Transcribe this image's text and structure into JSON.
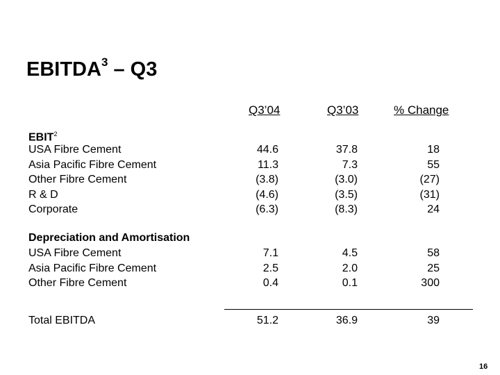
{
  "title": {
    "main": "EBITDA",
    "sup": "3",
    "rest": " – Q3"
  },
  "columns": [
    "Q3’04",
    "Q3’03",
    "% Change"
  ],
  "ebit": {
    "heading": "EBIT",
    "sup": "2",
    "rows": [
      {
        "label": "USA Fibre Cement",
        "v": [
          "44.6",
          "37.8",
          "18"
        ]
      },
      {
        "label": "Asia Pacific Fibre Cement",
        "v": [
          "11.3",
          "7.3",
          "55"
        ]
      },
      {
        "label": "Other Fibre Cement",
        "v": [
          "(3.8)",
          "(3.0)",
          "(27)"
        ]
      },
      {
        "label": "R & D",
        "v": [
          "(4.6)",
          "(3.5)",
          "(31)"
        ]
      },
      {
        "label": "Corporate",
        "v": [
          "(6.3)",
          "(8.3)",
          "24"
        ]
      }
    ]
  },
  "da": {
    "heading": "Depreciation and Amortisation",
    "rows": [
      {
        "label": "USA Fibre Cement",
        "v": [
          "7.1",
          "4.5",
          "58"
        ]
      },
      {
        "label": "Asia Pacific Fibre Cement",
        "v": [
          "2.5",
          "2.0",
          "25"
        ]
      },
      {
        "label": "Other Fibre Cement",
        "v": [
          "0.4",
          "0.1",
          "300"
        ]
      }
    ]
  },
  "total": {
    "label": "Total EBITDA",
    "v": [
      "51.2",
      "36.9",
      "39"
    ]
  },
  "page_number": "16"
}
